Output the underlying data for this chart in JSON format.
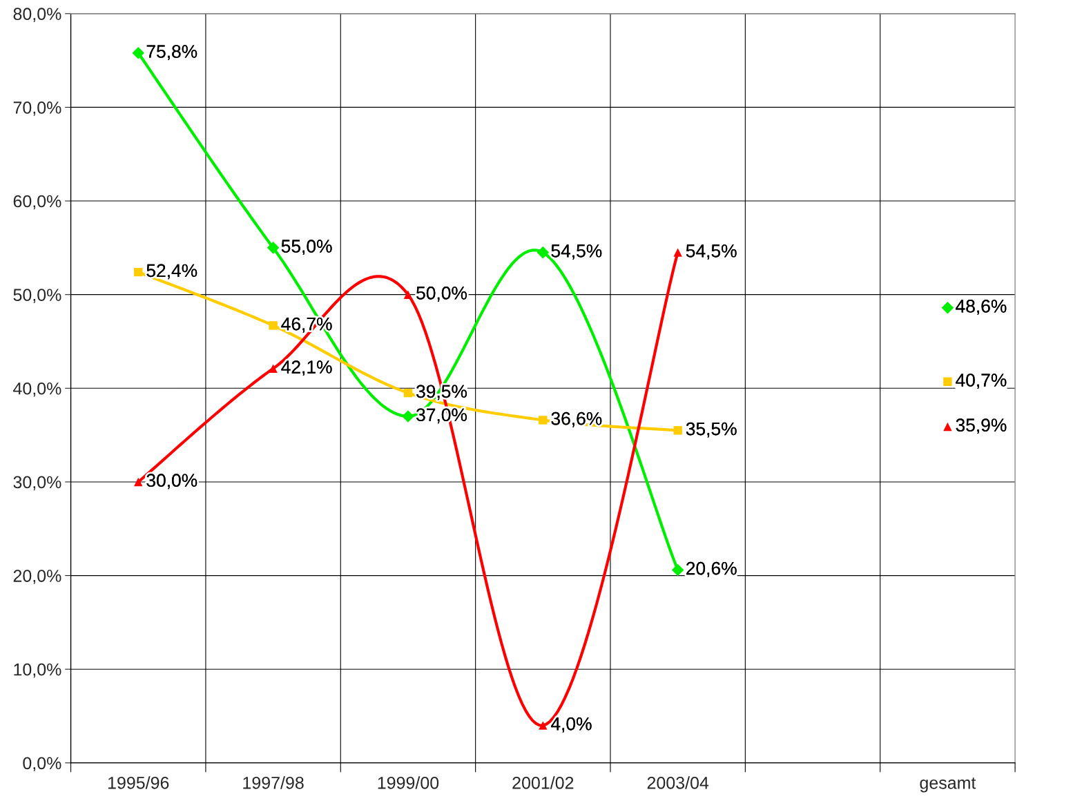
{
  "chart_data": {
    "type": "line",
    "categories": [
      "1995/96",
      "1997/98",
      "1999/00",
      "2001/02",
      "2003/04",
      null,
      "gesamt"
    ],
    "series": [
      {
        "color": "#00ee00",
        "marker": "diamond",
        "values": [
          75.8,
          55.0,
          37.0,
          54.5,
          20.6,
          null,
          48.6
        ],
        "value_labels": [
          "75,8%",
          "55,0%",
          "37,0%",
          "54,5%",
          "20,6%",
          null,
          "48,6%"
        ]
      },
      {
        "color": "#ffcc00",
        "marker": "square",
        "values": [
          52.4,
          46.7,
          39.5,
          36.6,
          35.5,
          null,
          40.7
        ],
        "value_labels": [
          "52,4%",
          "46,7%",
          "39,5%",
          "36,6%",
          "35,5%",
          null,
          "40,7%"
        ]
      },
      {
        "color": "#ff0000",
        "marker": "triangle",
        "values": [
          30.0,
          42.1,
          50.0,
          4.0,
          54.5,
          null,
          35.9
        ],
        "value_labels": [
          "30,0%",
          "42,1%",
          "50,0%",
          "4,0%",
          "54,5%",
          null,
          "35,9%"
        ]
      }
    ],
    "ylim": [
      0,
      80
    ],
    "yticks": [
      {
        "value": 0,
        "label": "0,0%"
      },
      {
        "value": 10,
        "label": "10,0%"
      },
      {
        "value": 20,
        "label": "20,0%"
      },
      {
        "value": 30,
        "label": "30,0%"
      },
      {
        "value": 40,
        "label": "40,0%"
      },
      {
        "value": 50,
        "label": "50,0%"
      },
      {
        "value": 60,
        "label": "60,0%"
      },
      {
        "value": 70,
        "label": "70,0%"
      },
      {
        "value": 80,
        "label": "80,0%"
      }
    ],
    "grid": true,
    "line_style": "solid"
  }
}
